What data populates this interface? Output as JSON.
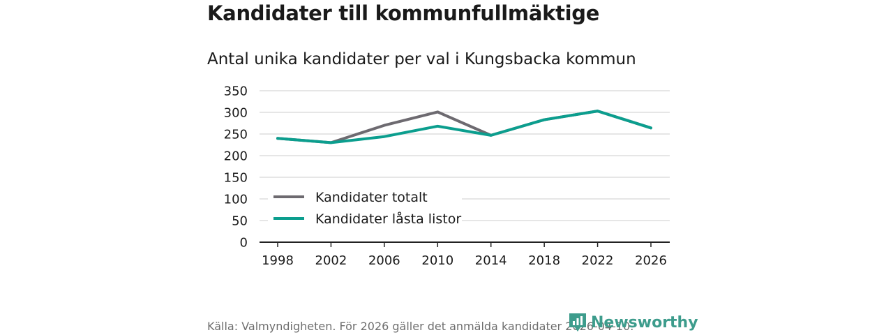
{
  "title": "Kandidater till kommunfullmäktige",
  "subtitle": "Antal unika kandidater per val i Kungsbacka kommun",
  "source": "Källa: Valmyndigheten. För 2026 gäller det anmälda kandidater 2026-04-10.",
  "brand": "Newsworthy",
  "colors": {
    "total": "#6d6a70",
    "locked": "#0b9e8e",
    "grid": "#dddddd",
    "axis": "#222222"
  },
  "chart_data": {
    "type": "line",
    "categories": [
      "1998",
      "2002",
      "2006",
      "2010",
      "2014",
      "2018",
      "2022",
      "2026"
    ],
    "y_ticks": [
      "0",
      "50",
      "100",
      "150",
      "200",
      "250",
      "300",
      "350"
    ],
    "ylim": [
      0,
      350
    ],
    "grid": true,
    "legend_position": "bottom-left",
    "series": [
      {
        "name": "Kandidater totalt",
        "values": [
          240,
          230,
          270,
          301,
          247,
          283,
          303,
          264
        ]
      },
      {
        "name": "Kandidater låsta listor",
        "values": [
          240,
          230,
          244,
          268,
          247,
          283,
          303,
          264
        ]
      }
    ]
  }
}
